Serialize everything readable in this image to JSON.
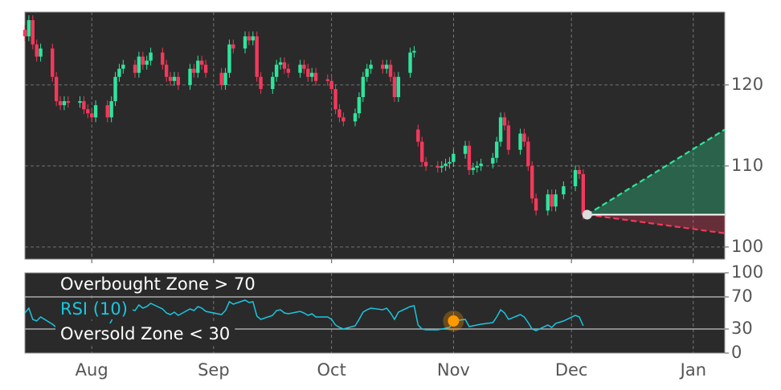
{
  "chart_data": [
    {
      "type": "candlestick",
      "x": [
        "07-15",
        "07-16",
        "07-17",
        "07-18",
        "07-19",
        "07-22",
        "07-23",
        "07-24",
        "07-25",
        "07-26",
        "07-29",
        "07-30",
        "07-31",
        "08-01",
        "08-02",
        "08-05",
        "08-06",
        "08-07",
        "08-08",
        "08-09",
        "08-12",
        "08-13",
        "08-14",
        "08-15",
        "08-16",
        "08-19",
        "08-20",
        "08-21",
        "08-22",
        "08-23",
        "08-26",
        "08-27",
        "08-28",
        "08-29",
        "08-30",
        "09-03",
        "09-04",
        "09-05",
        "09-06",
        "09-09",
        "09-10",
        "09-11",
        "09-12",
        "09-13",
        "09-16",
        "09-17",
        "09-18",
        "09-19",
        "09-20",
        "09-23",
        "09-24",
        "09-25",
        "09-26",
        "09-27",
        "09-30",
        "10-01",
        "10-02",
        "10-03",
        "10-04",
        "10-07",
        "10-08",
        "10-09",
        "10-10",
        "10-11",
        "10-14",
        "10-15",
        "10-16",
        "10-17",
        "10-18",
        "10-21",
        "10-22",
        "10-23",
        "10-24",
        "10-25",
        "10-28",
        "10-29",
        "10-30",
        "10-31",
        "11-01",
        "11-04",
        "11-05",
        "11-06",
        "11-07",
        "11-08",
        "11-11",
        "11-12",
        "11-13",
        "11-14",
        "11-15",
        "11-18",
        "11-19",
        "11-20",
        "11-21",
        "11-22",
        "11-25",
        "11-26",
        "11-27",
        "11-29",
        "12-02",
        "12-03",
        "12-04"
      ],
      "open": [
        126.8,
        126,
        128,
        125,
        123.5,
        124.5,
        121,
        118,
        117.5,
        118,
        117.8,
        118,
        117,
        116.5,
        116,
        117.5,
        116,
        118,
        121,
        122,
        122.5,
        121.5,
        123.5,
        122.5,
        123,
        124,
        122.5,
        121,
        120.5,
        121,
        120,
        122,
        121.5,
        123,
        122.5,
        121.5,
        120,
        121.5,
        125,
        124.5,
        126,
        125.5,
        126,
        121,
        119.5,
        121,
        122.5,
        122.8,
        122,
        121.5,
        122.5,
        122,
        121,
        121.5,
        120.7,
        120.5,
        119.5,
        117,
        116,
        115.5,
        116.5,
        118.5,
        121,
        122,
        122.5,
        122,
        122.5,
        121,
        118.5,
        121.5,
        124,
        114.5,
        113,
        110.5,
        110,
        109.8,
        110,
        110.3,
        110.5,
        111.5,
        112.5,
        109.5,
        109.8,
        110,
        110.3,
        111,
        113,
        116,
        115,
        112,
        114,
        113,
        110,
        106,
        104.5,
        106.5,
        105,
        106.5,
        107.5,
        109.5,
        109
      ],
      "high": [
        127.4,
        128.6,
        128.6,
        125.6,
        125.1,
        125.1,
        121.6,
        118.6,
        118.6,
        118.6,
        118.6,
        118.6,
        117.6,
        117.1,
        118.1,
        118.1,
        118.6,
        121.6,
        122.6,
        123.1,
        123.1,
        124.1,
        124.1,
        123.6,
        124.6,
        124.6,
        123.1,
        121.6,
        121.6,
        121.6,
        122.6,
        122.6,
        123.6,
        123.6,
        123.1,
        122.1,
        122.1,
        125.6,
        125.6,
        126.6,
        126.6,
        126.6,
        126.6,
        121.6,
        121.6,
        123.1,
        123.4,
        123.4,
        122.6,
        123.1,
        123.1,
        122.6,
        122.1,
        122.1,
        121.3,
        121.1,
        120.1,
        117.6,
        116.6,
        117.1,
        119.1,
        121.6,
        122.6,
        123.1,
        123.1,
        123.1,
        123.1,
        121.6,
        121.6,
        124.6,
        124.8,
        115.1,
        113.6,
        111.1,
        110.6,
        110.6,
        110.9,
        111.1,
        112.1,
        113.1,
        113.1,
        110.4,
        110.6,
        110.9,
        111.6,
        113.6,
        116.6,
        116.6,
        115.6,
        114.6,
        114.6,
        113.6,
        110.6,
        106.6,
        107.1,
        107.1,
        107.1,
        108.1,
        110.1,
        110.1,
        109.6
      ],
      "low": [
        125.4,
        125.4,
        124.4,
        122.9,
        122.9,
        120.4,
        117.4,
        116.9,
        116.9,
        117.2,
        117.2,
        116.4,
        115.9,
        115.4,
        115.4,
        115.4,
        115.4,
        117.4,
        120.4,
        121.4,
        120.9,
        120.9,
        121.9,
        121.9,
        122.4,
        121.9,
        120.4,
        119.9,
        119.9,
        119.4,
        119.4,
        120.9,
        120.9,
        121.9,
        120.9,
        119.4,
        119.4,
        120.9,
        123.9,
        123.9,
        124.9,
        124.9,
        120.4,
        118.9,
        118.9,
        120.4,
        121.9,
        121.4,
        120.9,
        120.9,
        121.4,
        120.4,
        120.4,
        119.9,
        119.9,
        118.9,
        116.4,
        115.4,
        114.9,
        114.9,
        115.9,
        117.9,
        120.4,
        121.4,
        121.4,
        121.4,
        120.4,
        117.9,
        117.9,
        120.9,
        123.4,
        112.4,
        109.9,
        109.4,
        109.2,
        109.2,
        109.4,
        109.7,
        109.9,
        110.9,
        108.9,
        108.9,
        109.2,
        109.4,
        109.7,
        110.4,
        112.4,
        114.4,
        111.4,
        111.4,
        112.4,
        109.4,
        105.4,
        103.9,
        103.9,
        104.4,
        104.4,
        105.9,
        106.9,
        108.4,
        103.4
      ],
      "close": [
        126,
        128,
        125,
        123.5,
        124.5,
        121,
        118,
        117.5,
        118,
        117.8,
        118,
        117,
        116.5,
        116,
        117.5,
        116,
        118,
        121,
        122,
        122.5,
        121.5,
        123.5,
        122.5,
        123,
        124,
        122.5,
        121,
        120.5,
        121,
        120,
        122,
        121.5,
        123,
        122.5,
        121.5,
        120,
        121.5,
        125,
        124.5,
        126,
        125.5,
        126,
        121,
        119.5,
        121,
        122.5,
        122.8,
        122,
        121.5,
        122.5,
        122,
        121,
        121.5,
        120.5,
        120.5,
        119.5,
        117,
        116,
        115.5,
        116.5,
        118.5,
        121,
        122,
        122.5,
        122,
        122.5,
        121,
        118.5,
        121,
        124,
        124.2,
        113,
        110.5,
        110,
        109.8,
        110,
        110.3,
        110.5,
        111.5,
        112.5,
        109.5,
        109.8,
        110,
        110.3,
        111,
        113,
        116,
        115,
        112,
        114,
        113,
        110,
        106,
        104.5,
        106.5,
        105,
        106.5,
        107.5,
        109.5,
        109,
        104
      ],
      "up_color": "#2ee59d",
      "down_color": "#f2395b",
      "xlim": [
        "07-15",
        "01-09"
      ],
      "xticks": [
        {
          "value": "08-01",
          "label": "Aug"
        },
        {
          "value": "09-01",
          "label": "Sep"
        },
        {
          "value": "10-01",
          "label": "Oct"
        },
        {
          "value": "11-01",
          "label": "Nov"
        },
        {
          "value": "12-01",
          "label": "Dec"
        },
        {
          "value": "01-01",
          "label": "Jan"
        }
      ],
      "ylim": [
        98.5,
        129
      ],
      "yticks": [
        100,
        110,
        120
      ],
      "grid": true,
      "forecast": {
        "x": [
          "12-05",
          "01-09"
        ],
        "upper": [
          104,
          114.5
        ],
        "mid": [
          104,
          104
        ],
        "lower": [
          104,
          101.7
        ],
        "upper_color": "#2ee59d",
        "lower_color": "#f2395b",
        "mid_color": "#ffffff",
        "dot_color": "#dddddd"
      }
    },
    {
      "type": "line",
      "series": [
        {
          "name": "RSI (10)",
          "color": "#19c6e0",
          "values": [
            50,
            56,
            42,
            40,
            45,
            36,
            32,
            31,
            33,
            33,
            34,
            31,
            30,
            29,
            36,
            32,
            40,
            52,
            56,
            57,
            53,
            60,
            56,
            58,
            62,
            55,
            50,
            48,
            51,
            47,
            55,
            53,
            58,
            56,
            52,
            48,
            53,
            64,
            61,
            66,
            63,
            64,
            46,
            42,
            47,
            53,
            54,
            50,
            49,
            52,
            50,
            47,
            49,
            45,
            45,
            42,
            35,
            32,
            30,
            34,
            42,
            51,
            54,
            56,
            54,
            56,
            50,
            42,
            51,
            58,
            59,
            35,
            30,
            29,
            29,
            30,
            31,
            32,
            40,
            42,
            33,
            34,
            35,
            36,
            38,
            45,
            54,
            50,
            42,
            48,
            45,
            38,
            30,
            28,
            35,
            32,
            37,
            40,
            47,
            45,
            34
          ]
        }
      ],
      "hlines": [
        70,
        30
      ],
      "annotations": [
        "Overbought Zone > 70",
        "Oversold Zone < 30"
      ],
      "marker": {
        "x": "11-01",
        "value": 40,
        "color": "#ff9900"
      },
      "ylim": [
        0,
        100
      ],
      "yticks": [
        0,
        30,
        70,
        100
      ]
    }
  ]
}
